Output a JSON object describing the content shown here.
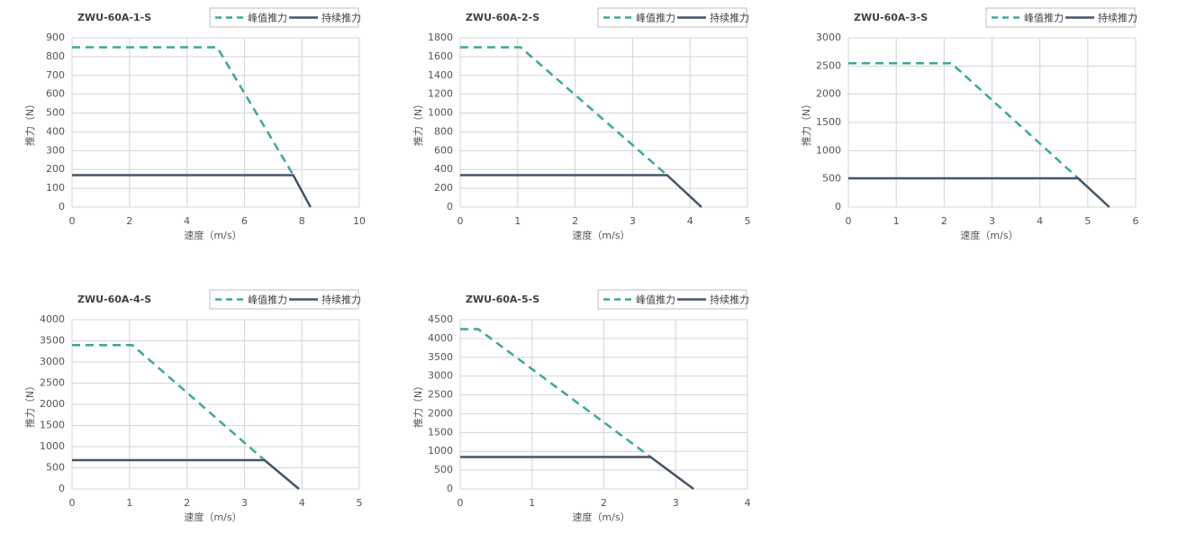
{
  "chart_data": [
    {
      "type": "line",
      "title": "ZWU-60A-1-S",
      "x_label": "速度（m/s）",
      "y_label": "推力（N）",
      "xlim": [
        0,
        10
      ],
      "xticks": [
        0,
        2,
        4,
        6,
        8,
        10
      ],
      "ylim": [
        0,
        900
      ],
      "yticks": [
        0,
        100,
        200,
        300,
        400,
        500,
        600,
        700,
        800,
        900
      ],
      "grid": true,
      "legend": "top-right",
      "series": [
        {
          "name": "峰值推力",
          "color": "#3aa89a",
          "line_style": "dashed",
          "x": [
            0,
            5.05,
            7.7
          ],
          "values": [
            850,
            850,
            170
          ]
        },
        {
          "name": "持续推力",
          "color": "#44546a",
          "line_style": "solid",
          "x": [
            0,
            7.7,
            8.3
          ],
          "values": [
            170,
            170,
            0
          ]
        }
      ]
    },
    {
      "type": "line",
      "title": "ZWU-60A-2-S",
      "x_label": "速度（m/s）",
      "y_label": "推力（N）",
      "xlim": [
        0,
        5
      ],
      "xticks": [
        0,
        1,
        2,
        3,
        4,
        5
      ],
      "ylim": [
        0,
        1800
      ],
      "yticks": [
        0,
        200,
        400,
        600,
        800,
        1000,
        1200,
        1400,
        1600,
        1800
      ],
      "grid": true,
      "legend": "top-right",
      "series": [
        {
          "name": "峰值推力",
          "color": "#3aa89a",
          "line_style": "dashed",
          "x": [
            0,
            1.05,
            3.6
          ],
          "values": [
            1700,
            1700,
            340
          ]
        },
        {
          "name": "持续推力",
          "color": "#44546a",
          "line_style": "solid",
          "x": [
            0,
            3.6,
            4.2
          ],
          "values": [
            340,
            340,
            0
          ]
        }
      ]
    },
    {
      "type": "line",
      "title": "ZWU-60A-3-S",
      "x_label": "速度（m/s）",
      "y_label": "推力（N）",
      "xlim": [
        0,
        6
      ],
      "xticks": [
        0,
        1,
        2,
        3,
        4,
        5,
        6
      ],
      "ylim": [
        0,
        3000
      ],
      "yticks": [
        0,
        500,
        1000,
        1500,
        2000,
        2500,
        3000
      ],
      "grid": true,
      "legend": "top-right",
      "series": [
        {
          "name": "峰值推力",
          "color": "#3aa89a",
          "line_style": "dashed",
          "x": [
            0,
            2.15,
            4.8
          ],
          "values": [
            2550,
            2550,
            510
          ]
        },
        {
          "name": "持续推力",
          "color": "#44546a",
          "line_style": "solid",
          "x": [
            0,
            4.8,
            5.45
          ],
          "values": [
            510,
            510,
            0
          ]
        }
      ]
    },
    {
      "type": "line",
      "title": "ZWU-60A-4-S",
      "x_label": "速度（m/s）",
      "y_label": "推力（N）",
      "xlim": [
        0,
        5
      ],
      "xticks": [
        0,
        1,
        2,
        3,
        4,
        5
      ],
      "ylim": [
        0,
        4000
      ],
      "yticks": [
        0,
        500,
        1000,
        1500,
        2000,
        2500,
        3000,
        3500,
        4000
      ],
      "grid": true,
      "legend": "top-right",
      "series": [
        {
          "name": "峰值推力",
          "color": "#3aa89a",
          "line_style": "dashed",
          "x": [
            0,
            1.05,
            3.35
          ],
          "values": [
            3400,
            3400,
            680
          ]
        },
        {
          "name": "持续推力",
          "color": "#44546a",
          "line_style": "solid",
          "x": [
            0,
            3.35,
            3.95
          ],
          "values": [
            680,
            680,
            0
          ]
        }
      ]
    },
    {
      "type": "line",
      "title": "ZWU-60A-5-S",
      "x_label": "速度（m/s）",
      "y_label": "推力（N）",
      "xlim": [
        0,
        4
      ],
      "xticks": [
        0,
        1,
        2,
        3,
        4
      ],
      "ylim": [
        0,
        4500
      ],
      "yticks": [
        0,
        500,
        1000,
        1500,
        2000,
        2500,
        3000,
        3500,
        4000,
        4500
      ],
      "grid": true,
      "legend": "top-right",
      "series": [
        {
          "name": "峰值推力",
          "color": "#3aa89a",
          "line_style": "dashed",
          "x": [
            0,
            0.25,
            2.65
          ],
          "values": [
            4250,
            4250,
            850
          ]
        },
        {
          "name": "持续推力",
          "color": "#44546a",
          "line_style": "solid",
          "x": [
            0,
            2.65,
            3.25
          ],
          "values": [
            850,
            850,
            0
          ]
        }
      ]
    }
  ]
}
